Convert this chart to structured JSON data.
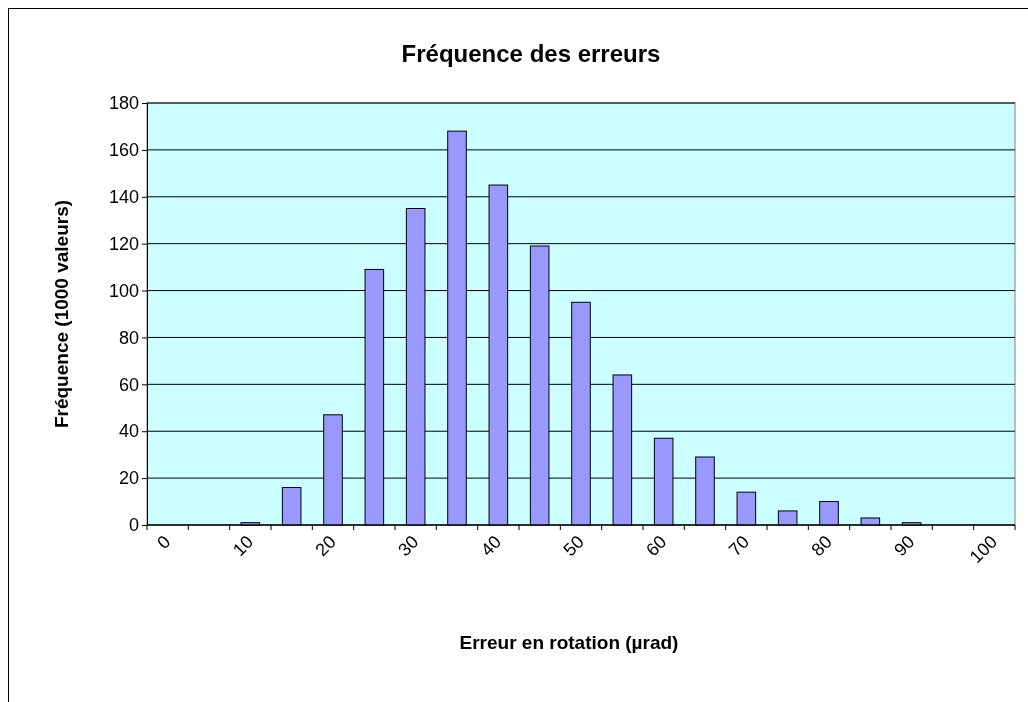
{
  "chart_data": {
    "type": "bar",
    "title": "Fréquence des erreurs",
    "xlabel": "Erreur en rotation (µrad)",
    "ylabel": "Fréquence (1000 valeurs)",
    "categories": [
      "0",
      null,
      "10",
      null,
      "20",
      null,
      "30",
      null,
      "40",
      null,
      "50",
      null,
      "60",
      null,
      "70",
      null,
      "80",
      null,
      "90",
      null,
      "100"
    ],
    "values": [
      0,
      0,
      1,
      16,
      47,
      109,
      135,
      168,
      145,
      119,
      95,
      64,
      37,
      29,
      14,
      6,
      10,
      3,
      1,
      0,
      0
    ],
    "color": "#9999ff",
    "ylim": [
      0,
      180
    ],
    "yticks": [
      0,
      20,
      40,
      60,
      80,
      100,
      120,
      140,
      160,
      180
    ],
    "grid": "y"
  }
}
